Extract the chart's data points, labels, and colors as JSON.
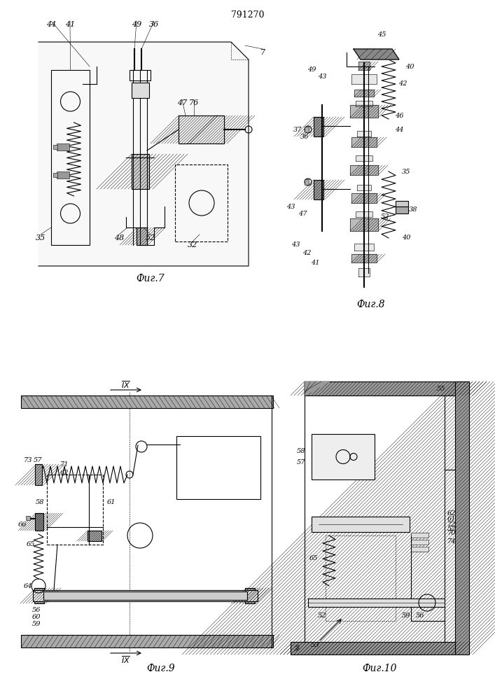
{
  "title": "791270",
  "fig7_label": "Фиг.7",
  "fig8_label": "Фиг.8",
  "fig9_label": "Фиг.9",
  "fig10_label": "Фиг.10",
  "bg_color": "#ffffff",
  "lc": "#000000",
  "lw": 0.8,
  "tlw": 0.4,
  "thw": 1.5
}
